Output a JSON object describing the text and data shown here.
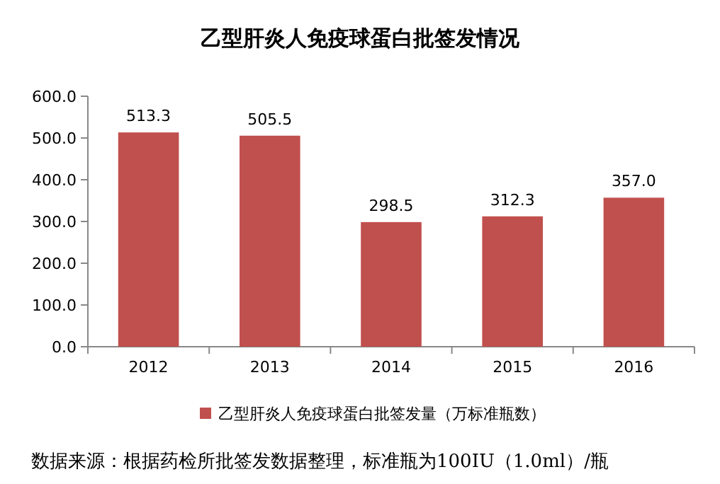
{
  "chart_data": {
    "type": "bar",
    "title": "乙型肝炎人免疫球蛋白批签发情况",
    "categories": [
      "2012",
      "2013",
      "2014",
      "2015",
      "2016"
    ],
    "series": [
      {
        "name": "乙型肝炎人免疫球蛋白批签发量（万标准瓶数）",
        "color": "#c0504d",
        "values": [
          513.3,
          505.5,
          298.5,
          312.3,
          357.0
        ],
        "value_labels": [
          "513.3",
          "505.5",
          "298.5",
          "312.3",
          "357.0"
        ]
      }
    ],
    "ylim": [
      0,
      600
    ],
    "yticks": [
      {
        "value": 0,
        "label": "0.0"
      },
      {
        "value": 100,
        "label": "100.0"
      },
      {
        "value": 200,
        "label": "200.0"
      },
      {
        "value": 300,
        "label": "300.0"
      },
      {
        "value": 400,
        "label": "400.0"
      },
      {
        "value": 500,
        "label": "500.0"
      },
      {
        "value": 600,
        "label": "600.0"
      }
    ],
    "grid": false,
    "legend": "bottom",
    "annotations": [
      "数据来源：根据药检所批签发数据整理，标准瓶为100IU（1.0ml）/瓶"
    ]
  }
}
